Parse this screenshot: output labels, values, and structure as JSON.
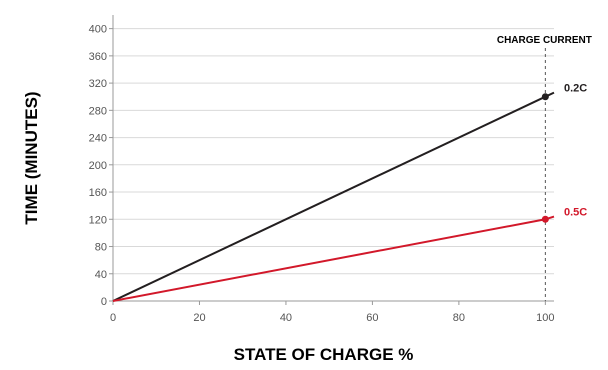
{
  "chart_data": {
    "type": "line",
    "title": "",
    "xlabel": "STATE OF CHARGE %",
    "ylabel": "TIME (MINUTES)",
    "xlim": [
      0,
      102
    ],
    "ylim": [
      0,
      420
    ],
    "x_ticks": [
      0,
      20,
      40,
      60,
      80,
      100
    ],
    "y_ticks": [
      0,
      40,
      80,
      120,
      160,
      200,
      240,
      280,
      320,
      360,
      400
    ],
    "grid": "horizontal",
    "series": [
      {
        "name": "0.2C",
        "color": "#231f20",
        "x": [
          0,
          100,
          102
        ],
        "y": [
          0,
          300,
          306
        ],
        "marker_at_x": 100
      },
      {
        "name": "0.5C",
        "color": "#d2182a",
        "x": [
          0,
          100,
          102
        ],
        "y": [
          0,
          120,
          124
        ],
        "marker_at_x": 100
      }
    ],
    "annotations": [
      {
        "text": "CHARGE CURRENT",
        "x": 100,
        "style": "dashed-vertical-line"
      }
    ]
  }
}
